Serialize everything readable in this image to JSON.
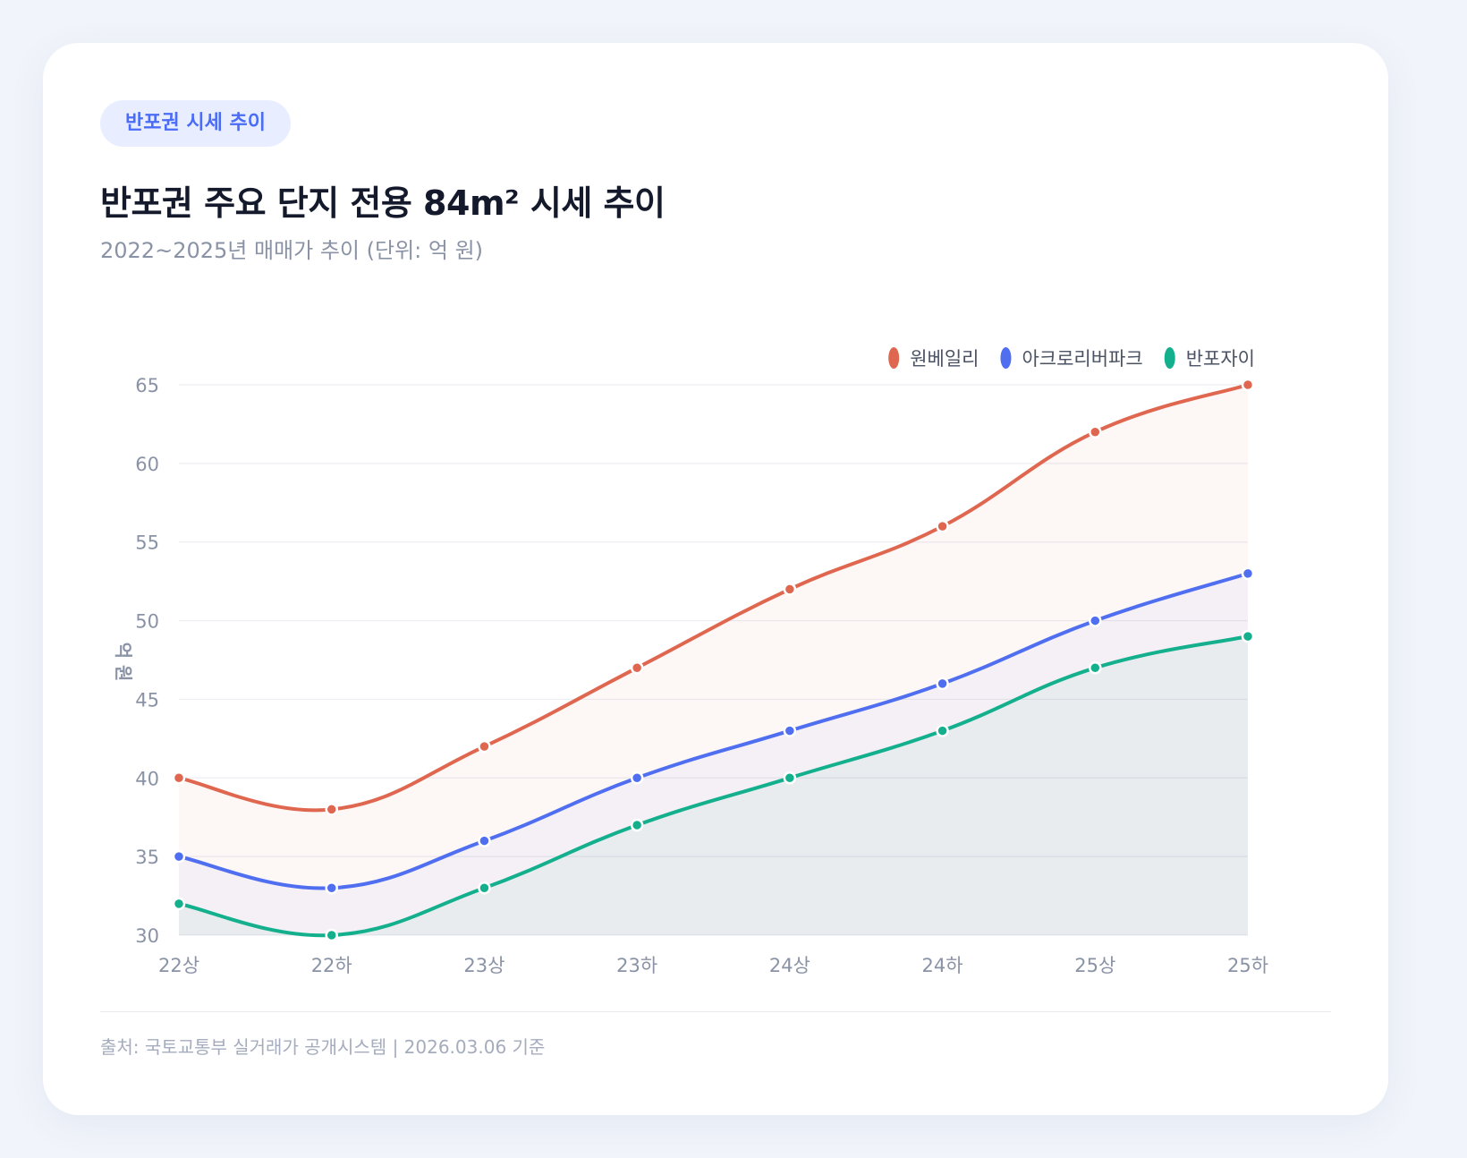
{
  "badge": "반포권 시세 추이",
  "title": "반포권 주요 단지 전용 84m² 시세 추이",
  "subtitle": "2022~2025년 매매가 추이 (단위: 억 원)",
  "footer": "출처: 국토교통부 실거래가 공개시스템 | 2026.03.06 기준",
  "chart_data": {
    "type": "area",
    "categories": [
      "22상",
      "22하",
      "23상",
      "23하",
      "24상",
      "24하",
      "25상",
      "25하"
    ],
    "ylabel": "억 원",
    "ylim": [
      30,
      65
    ],
    "yticks": [
      30,
      35,
      40,
      45,
      50,
      55,
      60,
      65
    ],
    "grid": true,
    "legend_position": "top-right",
    "series": [
      {
        "name": "원베일리",
        "color": "#e0674f",
        "values": [
          40,
          38,
          42,
          47,
          52,
          56,
          62,
          65
        ]
      },
      {
        "name": "아크로리버파크",
        "color": "#4f6ef0",
        "values": [
          35,
          33,
          36,
          40,
          43,
          46,
          50,
          53
        ]
      },
      {
        "name": "반포자이",
        "color": "#14b08d",
        "values": [
          32,
          30,
          33,
          37,
          40,
          43,
          47,
          49
        ]
      }
    ]
  }
}
